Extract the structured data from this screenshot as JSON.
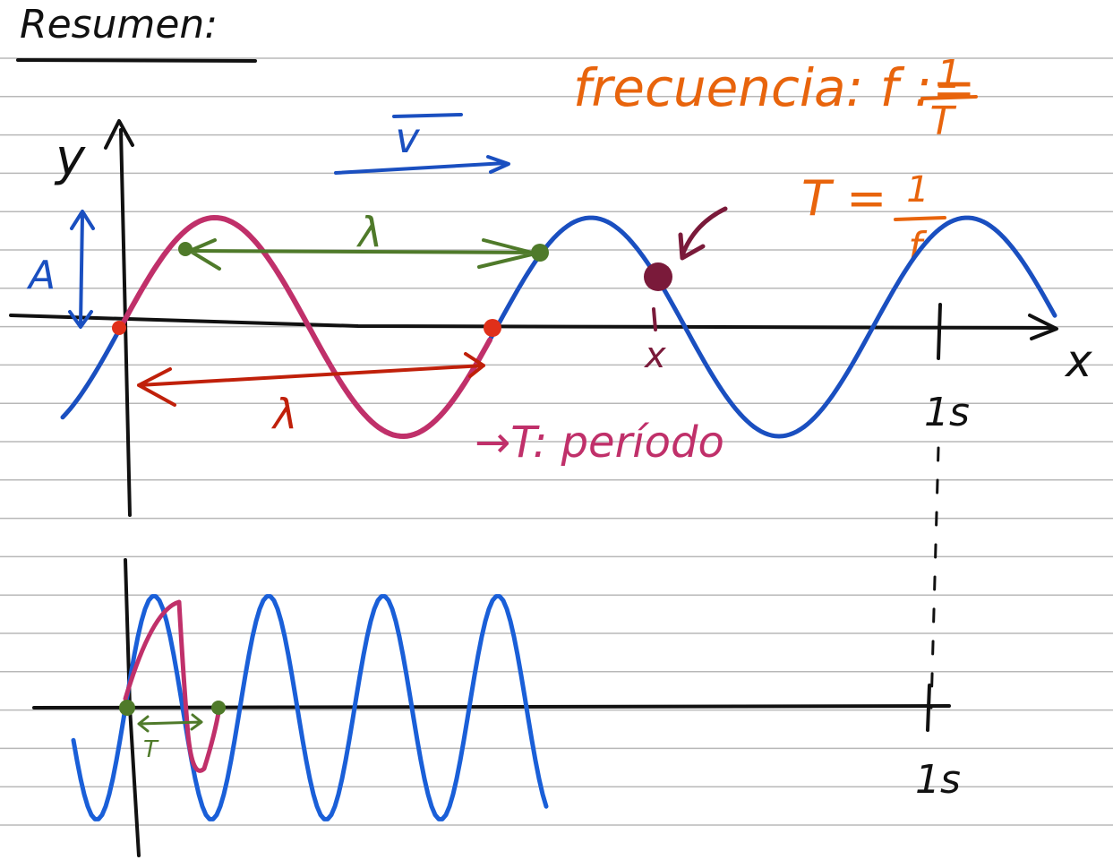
{
  "title": "Resumen:",
  "frequency": {
    "label": "frecuencia: f :=",
    "numerator": "1",
    "denominator": "T"
  },
  "period_formula": {
    "label": "T =",
    "numerator": "1",
    "denominator": "f"
  },
  "top_graph": {
    "y_axis": "y",
    "x_axis": "x",
    "velocity": "v",
    "amplitude": "A",
    "wavelength_green": "λ",
    "wavelength_red": "λ",
    "period": "→T: período",
    "point_label": "x",
    "time_mark": "1s"
  },
  "bottom_graph": {
    "period_label": "T",
    "time_mark": "1s"
  }
}
